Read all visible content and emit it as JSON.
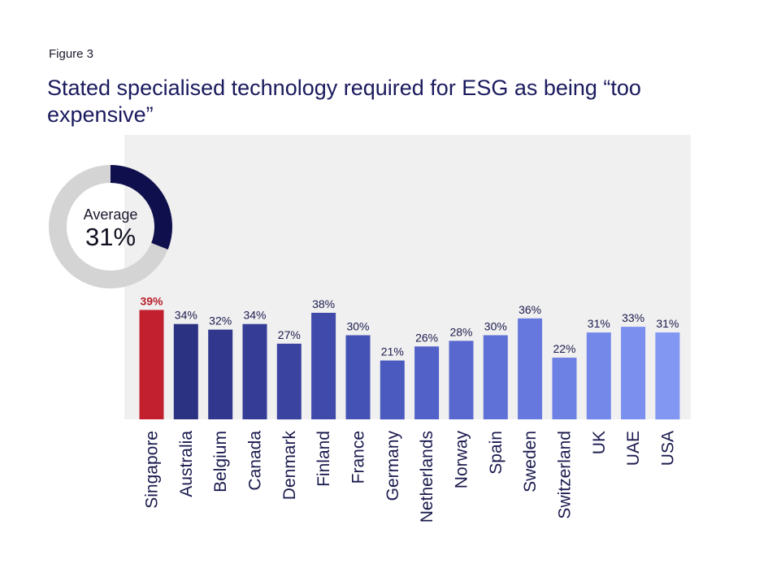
{
  "figure_label": "Figure 3",
  "title": "Stated specialised technology required for ESG as being “too expensive”",
  "average": {
    "label": "Average",
    "value_text": "31%",
    "value": 31,
    "ring_color": "#0f0f4d",
    "track_color": "#d4d4d4"
  },
  "colors": {
    "panel_bg": "#f0f0f0",
    "highlight_bar": "#c21f2f",
    "highlight_label": "#b81e2c",
    "label_text": "#1a1a4e"
  },
  "chart_data": {
    "type": "bar",
    "title": "Stated specialised technology required for ESG as being “too expensive”",
    "xlabel": "",
    "ylabel": "",
    "ylim": [
      0,
      50
    ],
    "grid": false,
    "categories": [
      "Singapore",
      "Australia",
      "Belgium",
      "Canada",
      "Denmark",
      "Finland",
      "France",
      "Germany",
      "Netherlands",
      "Norway",
      "Spain",
      "Sweden",
      "Switzerland",
      "UK",
      "UAE",
      "USA"
    ],
    "values": [
      39,
      34,
      32,
      34,
      27,
      38,
      30,
      21,
      26,
      28,
      30,
      36,
      22,
      31,
      33,
      31
    ],
    "value_labels": [
      "39%",
      "34%",
      "32%",
      "34%",
      "27%",
      "38%",
      "30%",
      "21%",
      "26%",
      "28%",
      "30%",
      "36%",
      "22%",
      "31%",
      "33%",
      "31%"
    ],
    "bar_colors": [
      "#c21f2f",
      "#2c3282",
      "#30378c",
      "#343c96",
      "#3a44a0",
      "#3f4aab",
      "#4552b5",
      "#4b5abf",
      "#5161c7",
      "#5868cf",
      "#5f70d6",
      "#6678dd",
      "#6d80e3",
      "#7488e9",
      "#7b8fee",
      "#8297f2"
    ]
  }
}
